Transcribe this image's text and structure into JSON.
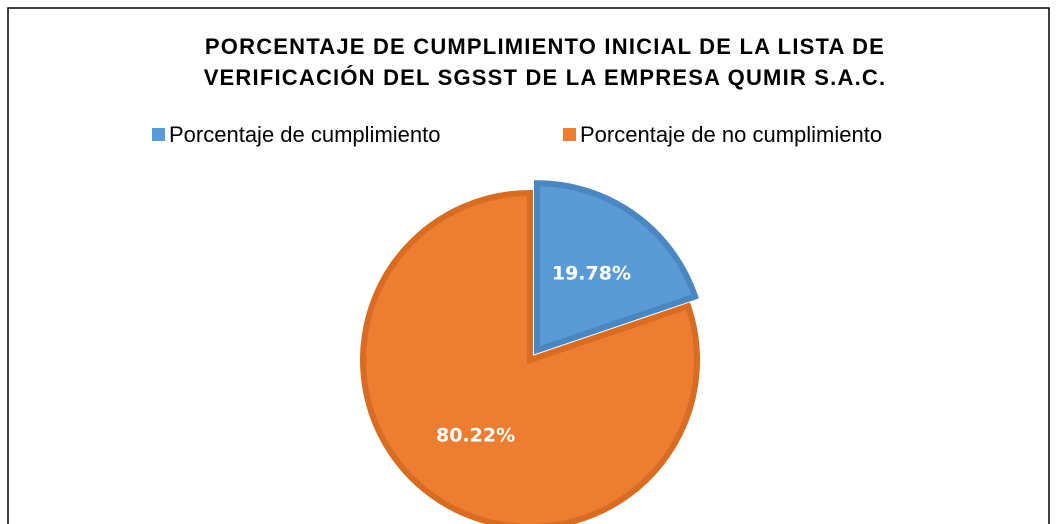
{
  "chart_data": {
    "type": "pie",
    "title": [
      "PORCENTAJE DE CUMPLIMIENTO INICIAL DE LA LISTA DE",
      "VERIFICACIÓN DEL SGSST DE LA EMPRESA QUMIR S.A.C."
    ],
    "categories": [
      "Porcentaje de cumplimiento",
      "Porcentaje de no cumplimiento"
    ],
    "values": [
      19.78,
      80.22
    ],
    "value_labels": [
      "19.78%",
      "80.22%"
    ],
    "colors": [
      "#5b9bd5",
      "#ed7d31"
    ],
    "legend": "top"
  }
}
